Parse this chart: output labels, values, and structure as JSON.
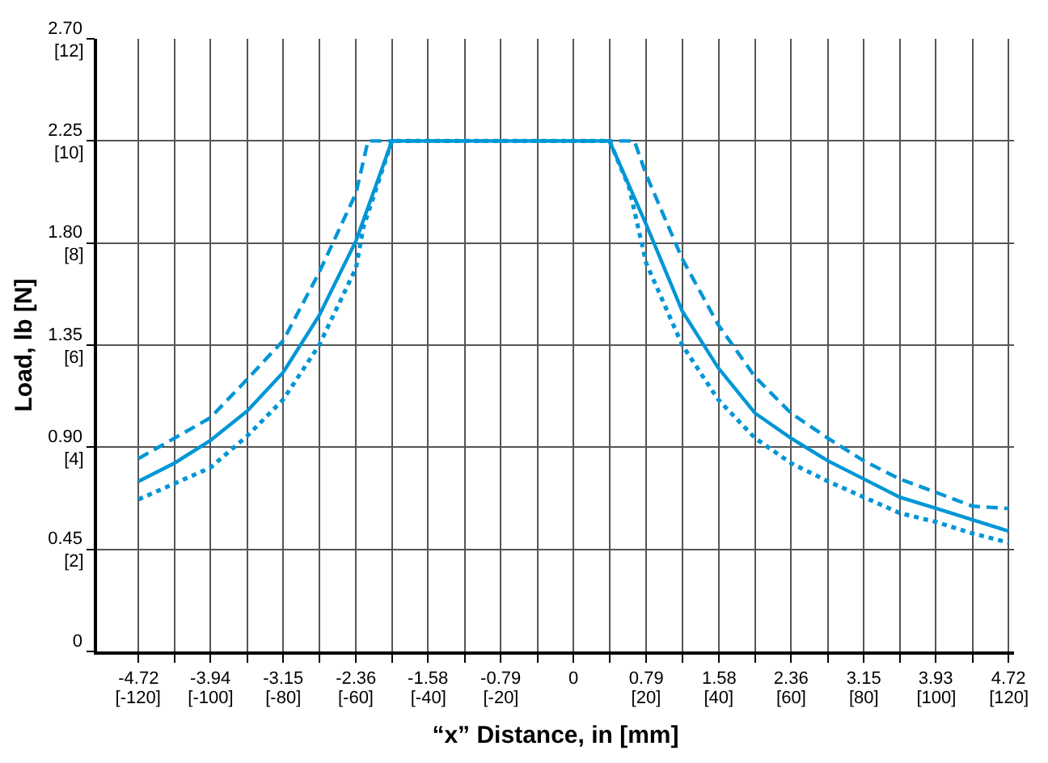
{
  "chart_data": {
    "type": "line",
    "xlabel": "“x” Distance, in [mm]",
    "ylabel": "Load, lb [N]",
    "xlim": [
      -5.17,
      4.78
    ],
    "ylim": [
      0,
      2.7
    ],
    "xticks": [
      -4.72,
      {
        "value": -4.33,
        "label": null
      },
      -3.94,
      {
        "value": -3.54,
        "label": null
      },
      -3.15,
      {
        "value": -2.76,
        "label": null
      },
      -2.36,
      {
        "value": -1.97,
        "label": null
      },
      -1.58,
      {
        "value": -1.18,
        "label": null
      },
      -0.79,
      {
        "value": -0.39,
        "label": null
      },
      0,
      {
        "value": 0.39,
        "label": null
      },
      0.79,
      {
        "value": 1.18,
        "label": null
      },
      1.58,
      {
        "value": 1.97,
        "label": null
      },
      2.36,
      {
        "value": 2.76,
        "label": null
      },
      3.15,
      {
        "value": 3.54,
        "label": null
      },
      3.93,
      {
        "value": 4.33,
        "label": null
      },
      4.72
    ],
    "x2lim": [
      -131.3,
      121.4
    ],
    "x2ticks": [
      {
        "value": -120,
        "label": "[-120]"
      },
      {
        "value": -100,
        "label": "[-100]"
      },
      {
        "value": -80,
        "label": "[-80]"
      },
      {
        "value": -60,
        "label": "[-60]"
      },
      {
        "value": -40,
        "label": "[-40]"
      },
      {
        "value": -20,
        "label": "[-20]"
      },
      {
        "value": 20,
        "label": "[20]"
      },
      {
        "value": 40,
        "label": "[40]"
      },
      {
        "value": 60,
        "label": "[60]"
      },
      {
        "value": 80,
        "label": "[80]"
      },
      {
        "value": 100,
        "label": "[100]"
      },
      {
        "value": 120,
        "label": "[120]"
      }
    ],
    "yticks": [
      0,
      0.45,
      {
        "value": 0.9,
        "label": "0.90"
      },
      1.35,
      {
        "value": 1.8,
        "label": "1.80"
      },
      2.25,
      {
        "value": 2.7,
        "label": "2.70"
      }
    ],
    "y2lim": [
      0,
      12
    ],
    "y2ticks": [
      {
        "value": 2,
        "label": "[2]"
      },
      {
        "value": 4,
        "label": "[4]"
      },
      {
        "value": 6,
        "label": "[6]"
      },
      {
        "value": 8,
        "label": "[8]"
      },
      {
        "value": 10,
        "label": "[10]"
      },
      {
        "value": 12,
        "label": "[12]"
      }
    ],
    "grid": true,
    "marker": "none",
    "series": [
      {
        "color": "#0096d6",
        "line_style": "solid",
        "x": [
          -4.72,
          -4.33,
          -3.94,
          -3.54,
          -3.15,
          -2.76,
          -2.36,
          -1.97,
          0.39,
          0.79,
          1.18,
          1.57,
          1.97,
          2.36,
          2.76,
          3.15,
          3.54,
          3.94,
          4.33,
          4.72
        ],
        "values": [
          0.75,
          0.83,
          0.93,
          1.06,
          1.23,
          1.48,
          1.81,
          2.25,
          2.25,
          1.88,
          1.5,
          1.25,
          1.05,
          0.94,
          0.84,
          0.76,
          0.68,
          0.63,
          0.58,
          0.53
        ]
      },
      {
        "color": "#0096d6",
        "line_style": "dashed",
        "x": [
          -4.72,
          -4.33,
          -3.94,
          -3.54,
          -3.15,
          -2.76,
          -2.36,
          -2.23,
          0.66,
          0.79,
          1.18,
          1.57,
          1.97,
          2.36,
          2.76,
          3.15,
          3.54,
          3.94,
          4.33,
          4.72
        ],
        "values": [
          0.85,
          0.94,
          1.03,
          1.2,
          1.37,
          1.67,
          2.02,
          2.25,
          2.25,
          2.1,
          1.73,
          1.44,
          1.21,
          1.05,
          0.94,
          0.84,
          0.76,
          0.7,
          0.64,
          0.63
        ]
      },
      {
        "color": "#0096d6",
        "line_style": "dotted",
        "x": [
          -4.72,
          -4.33,
          -3.94,
          -3.54,
          -3.15,
          -2.76,
          -2.36,
          -2.28,
          -1.97,
          0.39,
          0.6,
          0.79,
          1.18,
          1.57,
          1.97,
          2.36,
          2.76,
          3.15,
          3.54,
          3.94,
          4.33,
          4.72
        ],
        "values": [
          0.67,
          0.74,
          0.81,
          0.95,
          1.11,
          1.35,
          1.69,
          1.87,
          2.25,
          2.25,
          2.05,
          1.71,
          1.35,
          1.11,
          0.94,
          0.83,
          0.75,
          0.68,
          0.61,
          0.57,
          0.52,
          0.48
        ]
      }
    ]
  }
}
